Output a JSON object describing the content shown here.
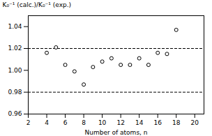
{
  "chart_data": {
    "type": "scatter",
    "x": [
      4,
      5,
      6,
      7,
      8,
      9,
      10,
      11,
      12,
      13,
      14,
      15,
      16,
      17,
      18
    ],
    "values": [
      1.016,
      1.021,
      1.005,
      0.999,
      0.987,
      1.003,
      1.008,
      1.011,
      1.005,
      1.005,
      1.011,
      1.005,
      1.016,
      1.015,
      1.037
    ],
    "reference_lines": [
      1.02,
      0.98
    ],
    "x_label": "Number of atoms, n",
    "y_label": "K₀⁻¹ (calc.)/K₀⁻¹ (exp.)",
    "xlim": [
      2,
      21
    ],
    "ylim": [
      0.96,
      1.05
    ],
    "xticks": [
      2,
      4,
      6,
      8,
      10,
      12,
      14,
      16,
      18,
      20
    ],
    "yticks": [
      0.96,
      0.98,
      {
        "value": 1.0,
        "label": "1.00"
      },
      1.02,
      1.04
    ],
    "marker": "circle",
    "color": "black",
    "grid": false
  }
}
